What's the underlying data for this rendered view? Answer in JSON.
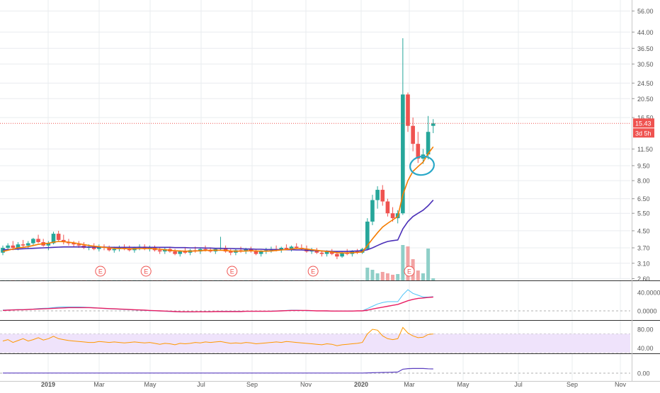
{
  "colors": {
    "up": "#26a69a",
    "down": "#ef5350",
    "vol_up": "#8fcfc8",
    "vol_down": "#f2a3a3",
    "ma_fast": "#f57c00",
    "ma_slow": "#4a2fb8",
    "macd": "#4fc3f7",
    "macd_signal": "#e91e63",
    "rsi": "#ff9800",
    "rsi_band": "#efe3fb",
    "ind3": "#5b3fc0",
    "last_price_line": "#ef5350",
    "circle": "#29a8c8",
    "earnings": "#ef5350",
    "axis_text": "#555555",
    "grid": "#e9ecef",
    "separator": "#333333"
  },
  "price_axis": {
    "ticks": [
      "56.00",
      "44.00",
      "36.50",
      "30.50",
      "24.50",
      "20.50",
      "16.50",
      "11.50",
      "9.50",
      "8.00",
      "6.50",
      "5.50",
      "4.50",
      "3.70",
      "3.10",
      "2.60"
    ],
    "last_price": "15.43",
    "countdown": "3d 5h",
    "scale": "log"
  },
  "macd_axis": {
    "ticks": [
      "40.0000",
      "0.0000"
    ]
  },
  "rsi_axis": {
    "ticks": [
      "80.00",
      "40.00"
    ]
  },
  "ind3_axis": {
    "ticks": [
      "0.00"
    ]
  },
  "time_axis": {
    "labels": [
      "2019",
      "Mar",
      "May",
      "Jul",
      "Sep",
      "Nov",
      "2020",
      "Mar",
      "May",
      "Jul",
      "Sep",
      "Nov"
    ]
  },
  "earnings_markers": {
    "label": "E",
    "weeks": [
      19,
      28,
      45,
      61,
      80
    ]
  },
  "chart_data": {
    "type": "candlestick",
    "interval": "weekly",
    "x_range": [
      "2018-12",
      "2020-11"
    ],
    "y_scale": "log",
    "ylim": [
      2.6,
      56
    ],
    "last_price": 15.43,
    "candles": [
      [
        3.5,
        3.8,
        3.4,
        3.7
      ],
      [
        3.7,
        3.9,
        3.6,
        3.8
      ],
      [
        3.8,
        4.0,
        3.6,
        3.7
      ],
      [
        3.7,
        3.95,
        3.6,
        3.85
      ],
      [
        3.85,
        4.05,
        3.7,
        3.8
      ],
      [
        3.8,
        4.0,
        3.65,
        3.9
      ],
      [
        3.9,
        4.15,
        3.8,
        4.1
      ],
      [
        4.1,
        4.3,
        3.9,
        3.95
      ],
      [
        3.95,
        4.1,
        3.75,
        3.8
      ],
      [
        3.8,
        4.0,
        3.6,
        3.9
      ],
      [
        3.9,
        4.45,
        3.85,
        4.35
      ],
      [
        4.35,
        4.5,
        4.0,
        4.05
      ],
      [
        4.05,
        4.3,
        3.85,
        3.95
      ],
      [
        3.95,
        4.1,
        3.8,
        3.9
      ],
      [
        3.9,
        4.0,
        3.75,
        3.85
      ],
      [
        3.85,
        4.0,
        3.7,
        3.8
      ],
      [
        3.8,
        3.95,
        3.65,
        3.7
      ],
      [
        3.7,
        3.85,
        3.6,
        3.75
      ],
      [
        3.75,
        3.9,
        3.6,
        3.65
      ],
      [
        3.65,
        3.85,
        3.55,
        3.75
      ],
      [
        3.75,
        3.85,
        3.6,
        3.7
      ],
      [
        3.7,
        3.8,
        3.55,
        3.6
      ],
      [
        3.6,
        3.75,
        3.5,
        3.65
      ],
      [
        3.65,
        3.8,
        3.55,
        3.7
      ],
      [
        3.7,
        3.85,
        3.6,
        3.65
      ],
      [
        3.65,
        3.8,
        3.55,
        3.6
      ],
      [
        3.6,
        3.75,
        3.5,
        3.7
      ],
      [
        3.7,
        3.85,
        3.6,
        3.75
      ],
      [
        3.75,
        3.85,
        3.6,
        3.65
      ],
      [
        3.65,
        3.8,
        3.55,
        3.7
      ],
      [
        3.7,
        3.8,
        3.55,
        3.6
      ],
      [
        3.6,
        3.7,
        3.45,
        3.55
      ],
      [
        3.55,
        3.7,
        3.45,
        3.65
      ],
      [
        3.65,
        3.75,
        3.5,
        3.55
      ],
      [
        3.55,
        3.65,
        3.4,
        3.45
      ],
      [
        3.45,
        3.6,
        3.35,
        3.55
      ],
      [
        3.55,
        3.7,
        3.45,
        3.5
      ],
      [
        3.5,
        3.65,
        3.4,
        3.6
      ],
      [
        3.6,
        3.75,
        3.5,
        3.55
      ],
      [
        3.55,
        3.7,
        3.45,
        3.65
      ],
      [
        3.65,
        3.8,
        3.55,
        3.6
      ],
      [
        3.6,
        3.72,
        3.5,
        3.55
      ],
      [
        3.55,
        3.7,
        3.45,
        3.65
      ],
      [
        3.65,
        4.2,
        3.6,
        3.7
      ],
      [
        3.7,
        3.8,
        3.5,
        3.55
      ],
      [
        3.55,
        3.65,
        3.4,
        3.5
      ],
      [
        3.5,
        3.65,
        3.4,
        3.6
      ],
      [
        3.6,
        3.75,
        3.5,
        3.55
      ],
      [
        3.55,
        3.7,
        3.45,
        3.65
      ],
      [
        3.65,
        3.75,
        3.5,
        3.55
      ],
      [
        3.55,
        3.65,
        3.4,
        3.45
      ],
      [
        3.45,
        3.6,
        3.35,
        3.55
      ],
      [
        3.55,
        3.7,
        3.45,
        3.6
      ],
      [
        3.6,
        3.75,
        3.5,
        3.65
      ],
      [
        3.65,
        3.8,
        3.55,
        3.6
      ],
      [
        3.6,
        3.75,
        3.5,
        3.7
      ],
      [
        3.7,
        3.85,
        3.6,
        3.65
      ],
      [
        3.65,
        3.8,
        3.55,
        3.75
      ],
      [
        3.75,
        3.9,
        3.65,
        3.7
      ],
      [
        3.7,
        3.85,
        3.6,
        3.65
      ],
      [
        3.65,
        3.8,
        3.5,
        3.55
      ],
      [
        3.55,
        3.7,
        3.45,
        3.6
      ],
      [
        3.6,
        3.7,
        3.45,
        3.5
      ],
      [
        3.5,
        3.6,
        3.35,
        3.45
      ],
      [
        3.45,
        3.6,
        3.35,
        3.55
      ],
      [
        3.55,
        3.65,
        3.4,
        3.45
      ],
      [
        3.45,
        3.55,
        3.25,
        3.35
      ],
      [
        3.35,
        3.55,
        3.3,
        3.5
      ],
      [
        3.5,
        3.65,
        3.4,
        3.45
      ],
      [
        3.45,
        3.6,
        3.35,
        3.55
      ],
      [
        3.55,
        3.65,
        3.45,
        3.5
      ],
      [
        3.5,
        3.7,
        3.45,
        3.65
      ],
      [
        3.65,
        5.2,
        3.6,
        5.0
      ],
      [
        5.0,
        6.8,
        4.8,
        6.4
      ],
      [
        6.4,
        7.5,
        5.8,
        7.2
      ],
      [
        7.2,
        7.6,
        6.0,
        6.3
      ],
      [
        6.3,
        6.5,
        5.3,
        5.5
      ],
      [
        5.5,
        5.9,
        5.0,
        5.2
      ],
      [
        5.2,
        5.7,
        4.9,
        5.5
      ],
      [
        5.5,
        41,
        5.4,
        21.5
      ],
      [
        21.5,
        22,
        14,
        15
      ],
      [
        15,
        16.5,
        11.2,
        12.2
      ],
      [
        12.2,
        14,
        9.8,
        10.3
      ],
      [
        10.3,
        11.5,
        9.7,
        10.8
      ],
      [
        10.8,
        16.8,
        10.2,
        14.0
      ],
      [
        15.0,
        16.2,
        13.8,
        15.43
      ]
    ],
    "volume": [
      0.3,
      0.3,
      0.3,
      0.3,
      0.3,
      0.3,
      0.3,
      0.3,
      0.3,
      0.3,
      0.3,
      0.3,
      0.3,
      0.3,
      0.3,
      0.3,
      0.3,
      0.3,
      0.3,
      0.3,
      0.3,
      0.3,
      0.3,
      0.3,
      0.3,
      0.3,
      0.3,
      0.3,
      0.3,
      0.3,
      0.3,
      0.3,
      0.3,
      0.3,
      0.3,
      0.3,
      0.3,
      0.3,
      0.3,
      0.3,
      0.3,
      0.3,
      0.3,
      0.3,
      0.3,
      0.3,
      0.3,
      0.3,
      0.3,
      0.3,
      0.3,
      0.3,
      0.3,
      0.3,
      0.3,
      0.3,
      0.3,
      0.3,
      0.3,
      0.3,
      0.3,
      0.3,
      0.3,
      0.3,
      0.3,
      0.3,
      0.3,
      0.3,
      0.3,
      0.3,
      0.3,
      0.3,
      18,
      15,
      10,
      12,
      10,
      8,
      9,
      50,
      48,
      30,
      14,
      10,
      45,
      3
    ],
    "ma_fast": [
      3.55,
      3.6,
      3.65,
      3.7,
      3.72,
      3.75,
      3.8,
      3.85,
      3.88,
      3.9,
      3.95,
      3.98,
      3.97,
      3.95,
      3.92,
      3.88,
      3.84,
      3.8,
      3.77,
      3.75,
      3.72,
      3.7,
      3.68,
      3.67,
      3.67,
      3.66,
      3.66,
      3.67,
      3.67,
      3.67,
      3.66,
      3.64,
      3.62,
      3.6,
      3.58,
      3.57,
      3.56,
      3.56,
      3.57,
      3.58,
      3.59,
      3.6,
      3.6,
      3.6,
      3.59,
      3.57,
      3.56,
      3.56,
      3.57,
      3.58,
      3.57,
      3.56,
      3.56,
      3.57,
      3.59,
      3.61,
      3.63,
      3.65,
      3.67,
      3.67,
      3.65,
      3.62,
      3.6,
      3.57,
      3.55,
      3.53,
      3.5,
      3.49,
      3.49,
      3.5,
      3.51,
      3.53,
      3.8,
      4.1,
      4.4,
      4.7,
      4.9,
      5.1,
      5.3,
      6.8,
      8.0,
      8.9,
      9.4,
      9.9,
      10.9,
      11.8
    ],
    "ma_slow": [
      3.62,
      3.63,
      3.64,
      3.65,
      3.66,
      3.67,
      3.68,
      3.69,
      3.7,
      3.71,
      3.72,
      3.73,
      3.74,
      3.74,
      3.74,
      3.74,
      3.74,
      3.73,
      3.73,
      3.73,
      3.73,
      3.72,
      3.72,
      3.72,
      3.72,
      3.72,
      3.72,
      3.72,
      3.72,
      3.72,
      3.72,
      3.72,
      3.72,
      3.72,
      3.71,
      3.71,
      3.71,
      3.7,
      3.7,
      3.7,
      3.69,
      3.69,
      3.68,
      3.68,
      3.67,
      3.67,
      3.66,
      3.66,
      3.65,
      3.65,
      3.64,
      3.64,
      3.63,
      3.63,
      3.63,
      3.62,
      3.62,
      3.62,
      3.61,
      3.61,
      3.6,
      3.59,
      3.58,
      3.57,
      3.56,
      3.55,
      3.55,
      3.55,
      3.55,
      3.56,
      3.57,
      3.58,
      3.62,
      3.7,
      3.8,
      3.9,
      3.98,
      4.02,
      4.05,
      4.6,
      5.0,
      5.3,
      5.5,
      5.7,
      6.0,
      6.4
    ],
    "macd": [
      2,
      2,
      2.5,
      3,
      3,
      3.5,
      4,
      5,
      5.5,
      6,
      7,
      8,
      8.5,
      8.5,
      8.5,
      8.5,
      8,
      7.5,
      7,
      6,
      5,
      4.5,
      4,
      3.5,
      3,
      2.5,
      2,
      1.5,
      1,
      0.5,
      0,
      -0.5,
      -1,
      -1.5,
      -2,
      -2.5,
      -2.5,
      -2.5,
      -2.5,
      -2,
      -2,
      -1.5,
      -1.5,
      -1,
      -1,
      -1,
      -1,
      -1,
      -1,
      -1,
      -1,
      -1,
      -1,
      -0.5,
      0,
      0.5,
      1,
      1.5,
      1.5,
      1,
      0.5,
      0,
      0,
      0,
      -0.5,
      -0.5,
      -0.5,
      -0.5,
      -0.5,
      0,
      0,
      0,
      5,
      10,
      15,
      18,
      20,
      20,
      20,
      35,
      46,
      38,
      34,
      30,
      30,
      31
    ],
    "macd_signal": [
      1,
      1.5,
      2,
      2.5,
      2.5,
      3,
      3.5,
      4,
      4.5,
      5,
      5.5,
      6,
      6.5,
      7,
      7,
      7,
      7,
      7,
      6.5,
      6,
      5.5,
      5,
      4.5,
      4,
      3.5,
      3,
      2.5,
      2,
      1.5,
      1,
      0.5,
      0,
      -0.5,
      -1,
      -1.5,
      -2,
      -2,
      -2,
      -2,
      -2,
      -2,
      -2,
      -1.5,
      -1.5,
      -1.5,
      -1.5,
      -1.5,
      -1.5,
      -1,
      -1,
      -1,
      -1,
      -1,
      -1,
      -0.5,
      0,
      0.5,
      1,
      1,
      1,
      1,
      0.5,
      0,
      0,
      0,
      -0.5,
      -0.5,
      -0.5,
      -0.5,
      -0.5,
      0,
      0,
      1.5,
      4,
      6,
      8,
      10,
      12,
      14,
      18,
      22,
      25,
      27,
      28,
      29,
      30
    ],
    "rsi": [
      55,
      58,
      52,
      56,
      60,
      55,
      58,
      62,
      57,
      60,
      65,
      60,
      58,
      56,
      55,
      54,
      53,
      52,
      52,
      54,
      53,
      52,
      53,
      52,
      51,
      52,
      53,
      52,
      51,
      52,
      50,
      48,
      50,
      49,
      47,
      50,
      49,
      50,
      52,
      51,
      53,
      52,
      53,
      54,
      52,
      50,
      51,
      50,
      52,
      51,
      49,
      50,
      51,
      52,
      53,
      52,
      54,
      53,
      52,
      51,
      50,
      49,
      48,
      47,
      49,
      48,
      45,
      47,
      48,
      49,
      50,
      52,
      70,
      80,
      78,
      66,
      60,
      58,
      60,
      84,
      72,
      66,
      62,
      63,
      69,
      70
    ],
    "ind3": [
      0.4,
      0.4,
      0.4,
      0.4,
      0.5,
      0.5,
      0.5,
      0.5,
      0.5,
      0.5,
      0.6,
      0.6,
      0.6,
      0.6,
      0.6,
      0.6,
      0.6,
      0.6,
      0.6,
      0.6,
      0.6,
      0.6,
      0.6,
      0.6,
      0.6,
      0.6,
      0.6,
      0.6,
      0.6,
      0.6,
      0.6,
      0.6,
      0.6,
      0.6,
      0.6,
      0.6,
      0.6,
      0.6,
      0.6,
      0.6,
      0.6,
      0.6,
      0.6,
      0.6,
      0.6,
      0.6,
      0.6,
      0.6,
      0.6,
      0.6,
      0.6,
      0.6,
      0.6,
      0.6,
      0.6,
      0.6,
      0.6,
      0.6,
      0.6,
      0.6,
      0.6,
      0.6,
      0.6,
      0.6,
      0.6,
      0.6,
      0.6,
      0.6,
      0.6,
      0.6,
      0.6,
      0.6,
      1.0,
      1.5,
      2.0,
      2.5,
      3.0,
      3.5,
      4.0,
      14,
      16,
      16.5,
      16.8,
      16.5,
      15.5,
      15
    ]
  }
}
